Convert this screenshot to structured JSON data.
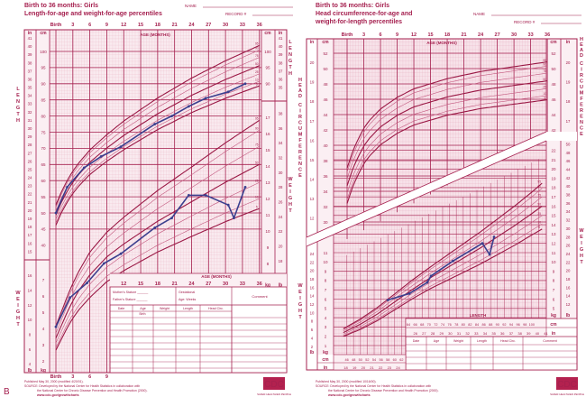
{
  "figure_label": "B",
  "colors": {
    "ink": "#a5204f",
    "grid": "#e6a9bd",
    "paper": "#f8e6ec",
    "plot": "#3b3f8e",
    "white": "#ffffff"
  },
  "left": {
    "title1": "Birth to 36 months: Girls",
    "title2": "Length-for-age and weight-for-age percentiles",
    "name_label": "NAME",
    "record_label": "RECORD #",
    "age_axis_label": "AGE (MONTHS)",
    "side_label_length": "LENGTH",
    "side_label_weight": "WEIGHT",
    "unit_in": "in",
    "unit_cm": "cm",
    "unit_kg": "kg",
    "unit_lb": "lb",
    "table": {
      "mother": "Mother's Stature",
      "father": "Father's Stature",
      "gestational": "Gestational",
      "age_weeks": "Age:            Weeks",
      "comment": "Comment",
      "columns": [
        "Date",
        "Age",
        "Weight",
        "Length",
        "Head Circ."
      ],
      "birth_row": "Birth"
    },
    "footer": {
      "published": "Published May 30, 2000 (modified 4/20/01).",
      "source1": "SOURCE: Developed by the National Center for Health Statistics in collaboration with",
      "source2": "the National Center for Chronic Disease Prevention and Health Promotion (2000).",
      "url": "www.cdc.gov/growthcharts"
    }
  },
  "right": {
    "title1": "Birth to 36 months: Girls",
    "title2": "Head circumference-for-age and",
    "title3": "weight-for-length percentiles",
    "name_label": "NAME",
    "record_label": "RECORD #",
    "age_axis_label": "AGE (MONTHS)",
    "length_axis_label": "LENGTH",
    "side_label_head": "HEAD CIRCUMFERENCE",
    "side_label_weight": "WEIGHT",
    "unit_in": "in",
    "unit_cm": "cm",
    "unit_kg": "kg",
    "unit_lb": "lb",
    "table": {
      "columns": [
        "Date",
        "Age",
        "Weight",
        "Length",
        "Head Circ.",
        "Comment"
      ]
    },
    "footer": {
      "published": "Published May 30, 2000 (modified 10/16/00).",
      "source1": "SOURCE: Developed by the National Center for Health Statistics in collaboration with",
      "source2": "the National Center for Chronic Disease Prevention and Health Promotion (2000).",
      "url": "www.cdc.gov/growthcharts"
    }
  },
  "logo": {
    "text": "CDC",
    "tagline": "SAFER·HEALTHIER·PEOPLE"
  },
  "chart_data": [
    {
      "type": "line",
      "title": "",
      "xlabel": "AGE (MONTHS)",
      "ylabel": "LENGTH",
      "x_ticks": [
        "Birth",
        "3",
        "6",
        "9",
        "12",
        "15",
        "18",
        "21",
        "24",
        "27",
        "30",
        "33",
        "36"
      ],
      "xlim": [
        0,
        36
      ],
      "y_unit": "cm",
      "y_ticks_cm": [
        40,
        45,
        50,
        55,
        60,
        65,
        70,
        75,
        80,
        85,
        90,
        95,
        100
      ],
      "y_ticks_in": [
        15,
        16,
        17,
        18,
        19,
        20,
        21,
        22,
        23,
        24,
        25,
        26,
        27,
        28,
        29,
        30,
        31,
        32,
        33,
        34,
        35,
        36,
        37,
        38,
        39,
        40,
        41
      ],
      "percentiles": [
        "5",
        "10",
        "25",
        "50",
        "75",
        "90",
        "95"
      ],
      "grid": true,
      "series": [
        {
          "x": [
            0,
            2,
            5,
            8,
            11.5,
            17.5,
            20.5,
            23.5,
            26.5,
            30.5,
            33.5
          ],
          "y": [
            50,
            58,
            64,
            67.5,
            70.5,
            77.5,
            80,
            83,
            85.5,
            87.5,
            90
          ]
        }
      ]
    },
    {
      "type": "line",
      "title": "",
      "xlabel": "AGE (MONTHS)",
      "ylabel": "WEIGHT",
      "x_ticks": [
        "Birth",
        "3",
        "6",
        "9",
        "12",
        "15",
        "18",
        "21",
        "24",
        "27",
        "30",
        "33",
        "36"
      ],
      "xlim": [
        0,
        36
      ],
      "y_unit": "kg",
      "y_ticks_kg": [
        2,
        3,
        4,
        5,
        6,
        7,
        8,
        9,
        10,
        11,
        12,
        13,
        14,
        15,
        16,
        17
      ],
      "y_ticks_lb": [
        4,
        6,
        8,
        10,
        12,
        14,
        16,
        18,
        20,
        22,
        24,
        26,
        28,
        30,
        32,
        34,
        36,
        38
      ],
      "percentiles": [
        "5",
        "10",
        "25",
        "50",
        "75",
        "90",
        "95"
      ],
      "grid": true,
      "series": [
        {
          "x": [
            0,
            2.5,
            5.5,
            8.5,
            11.5,
            17.5,
            20.5,
            23.5,
            26.5,
            30.5,
            31.5,
            33.5
          ],
          "y": [
            4.1,
            5.9,
            6.8,
            8.0,
            8.6,
            10.2,
            10.8,
            12.2,
            12.2,
            11.6,
            10.8,
            12.7
          ]
        }
      ]
    },
    {
      "type": "line",
      "title": "",
      "xlabel": "AGE (MONTHS)",
      "ylabel": "HEAD CIRCUMFERENCE",
      "x_ticks": [
        "Birth",
        "3",
        "6",
        "9",
        "12",
        "15",
        "18",
        "21",
        "24",
        "27",
        "30",
        "33",
        "36"
      ],
      "xlim": [
        0,
        36
      ],
      "y_unit": "cm",
      "y_ticks_cm": [
        30,
        32,
        34,
        36,
        38,
        40,
        42,
        44,
        46,
        48,
        50,
        52
      ],
      "y_ticks_in": [
        12,
        13,
        14,
        15,
        16,
        17,
        18,
        19,
        20
      ],
      "percentiles": [
        "5",
        "10",
        "25",
        "50",
        "75",
        "90",
        "95"
      ],
      "grid": true,
      "series": []
    },
    {
      "type": "line",
      "title": "",
      "xlabel": "LENGTH",
      "ylabel": "WEIGHT",
      "x_unit": "cm",
      "x_ticks_cm_low": [
        46,
        48,
        50,
        52,
        54,
        56,
        58,
        60,
        62
      ],
      "x_ticks_in_low": [
        18,
        19,
        20,
        21,
        22,
        23,
        24
      ],
      "x_ticks_cm_high": [
        64,
        66,
        68,
        70,
        72,
        74,
        76,
        78,
        80,
        82,
        84,
        86,
        88,
        90,
        92,
        94,
        96,
        98,
        100
      ],
      "x_ticks_in_high": [
        26,
        27,
        28,
        29,
        30,
        31,
        32,
        33,
        34,
        35,
        36,
        37,
        38,
        39,
        40,
        41
      ],
      "y_ticks_kg_left": [
        1,
        2,
        3,
        4,
        5,
        6,
        7,
        8,
        9,
        10,
        11
      ],
      "y_ticks_lb_left": [
        2,
        4,
        6,
        8,
        10,
        12,
        14,
        16,
        18,
        20,
        22,
        24
      ],
      "y_ticks_kg_right": [
        5,
        6,
        7,
        8,
        9,
        10,
        11,
        12,
        13,
        14,
        15,
        16,
        17,
        18,
        19,
        20,
        21,
        22
      ],
      "y_ticks_lb_right": [
        12,
        14,
        16,
        18,
        20,
        22,
        24,
        26,
        28,
        30,
        32,
        34,
        36,
        38,
        40,
        42,
        44,
        46,
        48,
        50
      ],
      "percentiles": [
        "5",
        "10",
        "25",
        "50",
        "75",
        "90",
        "95"
      ],
      "grid": true,
      "series": [
        {
          "x": [
            58,
            64.3,
            69.5,
            70.6,
            77,
            85.6,
            87.7,
            89
          ],
          "y": [
            5.9,
            6.6,
            7.8,
            8.5,
            10.1,
            12.0,
            10.8,
            12.7
          ]
        }
      ]
    }
  ]
}
